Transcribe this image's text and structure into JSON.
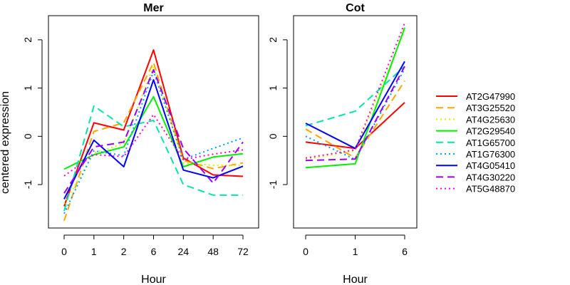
{
  "chart_data": [
    {
      "type": "line",
      "title": "Mer",
      "xlabel": "Hour",
      "ylabel": "centered expression",
      "x": [
        "0",
        "1",
        "2",
        "6",
        "24",
        "48",
        "72"
      ],
      "ylim": [
        -1.9,
        2.5
      ],
      "yticks": [
        "-1",
        "0",
        "1",
        "2"
      ],
      "grid": false,
      "series": [
        {
          "name": "AT2G47990",
          "color": "#ff0000",
          "dash": "solid",
          "values": [
            -1.45,
            0.28,
            0.13,
            1.79,
            -0.45,
            -0.8,
            -0.83
          ]
        },
        {
          "name": "AT3G25520",
          "color": "#ffa500",
          "dash": "dashed",
          "values": [
            -1.75,
            0.1,
            0.28,
            1.53,
            -0.5,
            -0.67,
            -0.55
          ]
        },
        {
          "name": "AT4G25630",
          "color": "#c0ff00",
          "dash": "dotted",
          "values": [
            -1.4,
            -0.35,
            -0.15,
            1.45,
            -0.55,
            -0.6,
            -0.6
          ]
        },
        {
          "name": "AT2G29540",
          "color": "#00ee00",
          "dash": "solid",
          "values": [
            -0.68,
            -0.38,
            -0.22,
            0.82,
            -0.63,
            -0.43,
            -0.36
          ]
        },
        {
          "name": "AT1G65700",
          "color": "#00e5a8",
          "dash": "dashed",
          "values": [
            -1.55,
            0.63,
            0.2,
            0.33,
            -1.0,
            -1.22,
            -1.22
          ]
        },
        {
          "name": "AT1G76300",
          "color": "#0099ff",
          "dash": "dotted",
          "values": [
            -1.6,
            -0.3,
            -0.4,
            1.35,
            -0.48,
            -0.25,
            -0.03
          ]
        },
        {
          "name": "AT4G05410",
          "color": "#0000ff",
          "dash": "solid",
          "values": [
            -1.3,
            -0.08,
            -0.63,
            1.17,
            -0.7,
            -0.86,
            -0.62
          ]
        },
        {
          "name": "AT4G30220",
          "color": "#9900ff",
          "dash": "dashed",
          "values": [
            -1.18,
            -0.22,
            -0.12,
            1.38,
            -0.25,
            -0.97,
            -0.12
          ]
        },
        {
          "name": "AT5G48870",
          "color": "#ff00cc",
          "dash": "dotted",
          "values": [
            -0.82,
            -0.38,
            -0.42,
            0.45,
            -0.48,
            -0.37,
            -0.28
          ]
        }
      ]
    },
    {
      "type": "line",
      "title": "Cot",
      "xlabel": "Hour",
      "ylabel": "",
      "x": [
        "0",
        "1",
        "6"
      ],
      "ylim": [
        -1.9,
        2.5
      ],
      "yticks": [
        "-1",
        "0",
        "1",
        "2"
      ],
      "grid": false,
      "series": [
        {
          "name": "AT2G47990",
          "color": "#ff0000",
          "dash": "solid",
          "values": [
            -0.12,
            -0.25,
            0.7
          ]
        },
        {
          "name": "AT3G25520",
          "color": "#ffa500",
          "dash": "dashed",
          "values": [
            0.15,
            -0.45,
            1.15
          ]
        },
        {
          "name": "AT4G25630",
          "color": "#c0ff00",
          "dash": "dotted",
          "values": [
            -0.48,
            -0.3,
            2.2
          ]
        },
        {
          "name": "AT2G29540",
          "color": "#00ee00",
          "dash": "solid",
          "values": [
            -0.65,
            -0.57,
            2.25
          ]
        },
        {
          "name": "AT1G65700",
          "color": "#00e5a8",
          "dash": "dashed",
          "values": [
            0.22,
            0.52,
            1.45
          ]
        },
        {
          "name": "AT1G76300",
          "color": "#0099ff",
          "dash": "dotted",
          "values": [
            0.0,
            -0.48,
            1.4
          ]
        },
        {
          "name": "AT4G05410",
          "color": "#0000ff",
          "dash": "solid",
          "values": [
            0.27,
            -0.25,
            1.55
          ]
        },
        {
          "name": "AT4G30220",
          "color": "#9900ff",
          "dash": "dashed",
          "values": [
            -0.5,
            -0.47,
            1.45
          ]
        },
        {
          "name": "AT5G48870",
          "color": "#ff00cc",
          "dash": "dotted",
          "values": [
            -0.45,
            -0.28,
            2.35
          ]
        }
      ]
    }
  ],
  "legend": {
    "placement": "right",
    "items": [
      "AT2G47990",
      "AT3G25520",
      "AT4G25630",
      "AT2G29540",
      "AT1G65700",
      "AT1G76300",
      "AT4G05410",
      "AT4G30220",
      "AT5G48870"
    ]
  }
}
